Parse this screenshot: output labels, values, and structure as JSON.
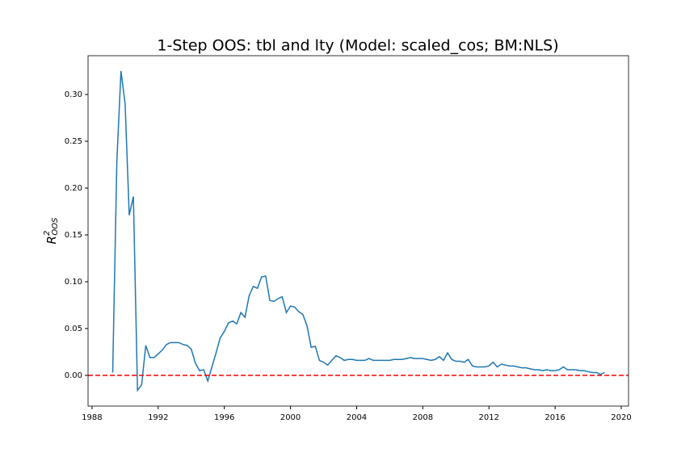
{
  "chart_data": {
    "type": "line",
    "title": "1-Step OOS: tbl and lty (Model: scaled_cos; BM:NLS)",
    "ylabel": {
      "base": "R",
      "sup": "2",
      "sub": "OOS"
    },
    "x": [
      1989.25,
      1989.5,
      1989.75,
      1990,
      1990.25,
      1990.5,
      1990.75,
      1991,
      1991.25,
      1991.5,
      1991.75,
      1992,
      1992.25,
      1992.5,
      1992.75,
      1993,
      1993.25,
      1993.5,
      1993.75,
      1994,
      1994.25,
      1994.5,
      1994.75,
      1995,
      1995.25,
      1995.5,
      1995.75,
      1996,
      1996.25,
      1996.5,
      1996.75,
      1997,
      1997.25,
      1997.5,
      1997.75,
      1998,
      1998.25,
      1998.5,
      1998.75,
      1999,
      1999.25,
      1999.5,
      1999.75,
      2000,
      2000.25,
      2000.5,
      2000.75,
      2001,
      2001.25,
      2001.5,
      2001.75,
      2002,
      2002.25,
      2002.5,
      2002.75,
      2003,
      2003.25,
      2003.5,
      2003.75,
      2004,
      2004.25,
      2004.5,
      2004.75,
      2005,
      2005.25,
      2005.5,
      2005.75,
      2006,
      2006.25,
      2006.5,
      2006.75,
      2007,
      2007.25,
      2007.5,
      2007.75,
      2008,
      2008.25,
      2008.5,
      2008.75,
      2009,
      2009.25,
      2009.5,
      2009.75,
      2010,
      2010.25,
      2010.5,
      2010.75,
      2011,
      2011.25,
      2011.5,
      2011.75,
      2012,
      2012.25,
      2012.5,
      2012.75,
      2013,
      2013.25,
      2013.5,
      2013.75,
      2014,
      2014.25,
      2014.5,
      2014.75,
      2015,
      2015.25,
      2015.5,
      2015.75,
      2016,
      2016.25,
      2016.5,
      2016.75,
      2017,
      2017.25,
      2017.5,
      2017.75,
      2018,
      2018.25,
      2018.5,
      2018.75,
      2019
    ],
    "series": [
      {
        "color": "#1f77b4",
        "values": [
          0.003,
          0.228,
          0.325,
          0.29,
          0.171,
          0.191,
          -0.016,
          -0.01,
          0.032,
          0.019,
          0.019,
          0.023,
          0.027,
          0.033,
          0.035,
          0.035,
          0.035,
          0.033,
          0.032,
          0.028,
          0.013,
          0.005,
          0.006,
          -0.006,
          0.009,
          0.024,
          0.04,
          0.047,
          0.056,
          0.058,
          0.055,
          0.067,
          0.062,
          0.085,
          0.095,
          0.093,
          0.105,
          0.106,
          0.08,
          0.079,
          0.082,
          0.084,
          0.067,
          0.074,
          0.073,
          0.068,
          0.065,
          0.053,
          0.03,
          0.031,
          0.016,
          0.014,
          0.011,
          0.016,
          0.021,
          0.019,
          0.016,
          0.017,
          0.017,
          0.016,
          0.016,
          0.016,
          0.018,
          0.016,
          0.016,
          0.016,
          0.016,
          0.016,
          0.017,
          0.017,
          0.017,
          0.018,
          0.019,
          0.018,
          0.018,
          0.018,
          0.017,
          0.016,
          0.017,
          0.02,
          0.016,
          0.024,
          0.017,
          0.015,
          0.015,
          0.014,
          0.017,
          0.01,
          0.009,
          0.009,
          0.009,
          0.01,
          0.014,
          0.009,
          0.012,
          0.011,
          0.01,
          0.01,
          0.009,
          0.008,
          0.008,
          0.007,
          0.006,
          0.006,
          0.005,
          0.006,
          0.005,
          0.005,
          0.006,
          0.009,
          0.006,
          0.006,
          0.006,
          0.005,
          0.005,
          0.004,
          0.003,
          0.003,
          0.001,
          0.003
        ]
      }
    ],
    "hline": {
      "y": 0,
      "color": "#ff0000"
    },
    "xlim": [
      1987.76,
      2020.44
    ],
    "ylim": [
      -0.0328,
      0.3414
    ],
    "xticks": [
      1988,
      1992,
      1996,
      2000,
      2004,
      2008,
      2012,
      2016,
      2020
    ],
    "yticks": [
      {
        "value": 0,
        "label": "0.00"
      },
      {
        "value": 0.05,
        "label": "0.05"
      },
      {
        "value": 0.1,
        "label": "0.10"
      },
      {
        "value": 0.15,
        "label": "0.15"
      },
      {
        "value": 0.2,
        "label": "0.20"
      },
      {
        "value": 0.25,
        "label": "0.25"
      },
      {
        "value": 0.3,
        "label": "0.30"
      }
    ]
  }
}
